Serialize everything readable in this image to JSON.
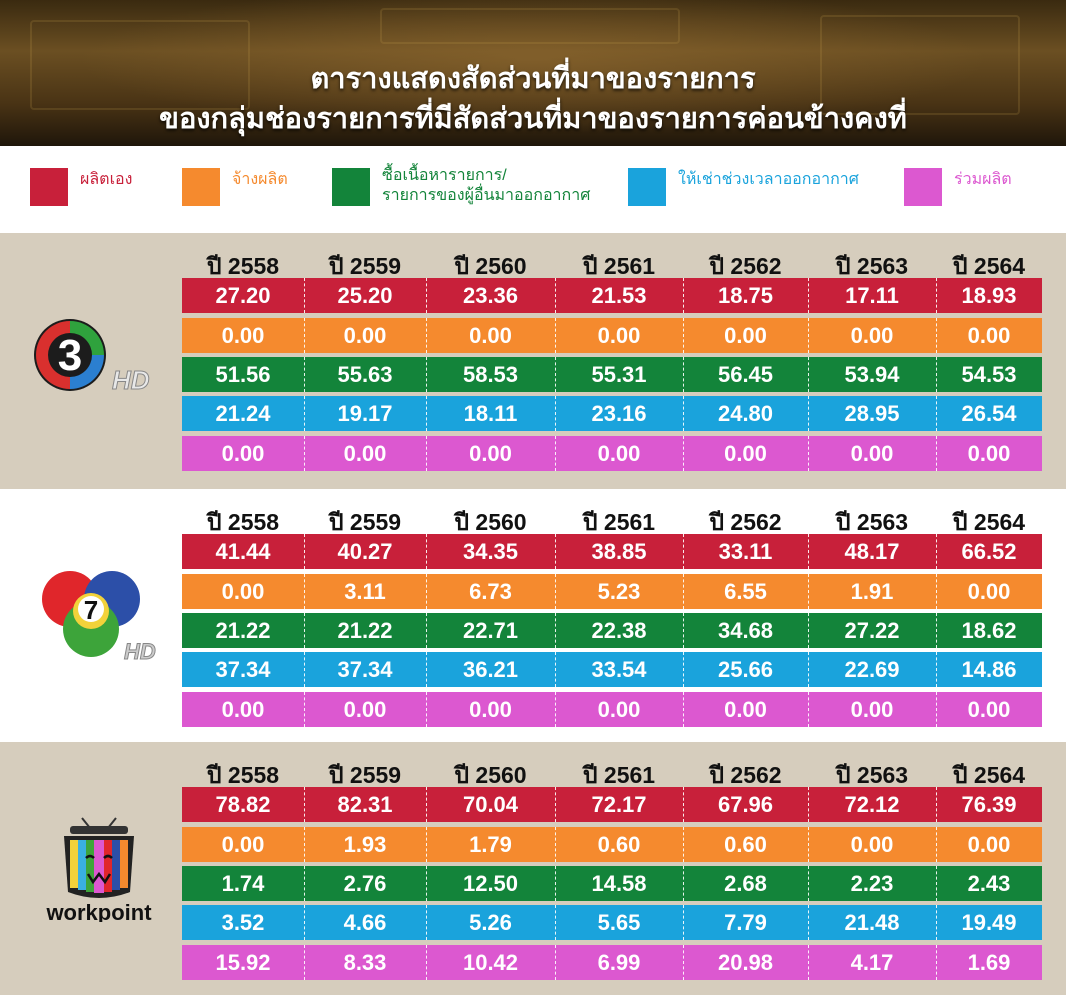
{
  "header": {
    "title_line1": "ตารางแสดงสัดส่วนที่มาของรายการ",
    "title_line2": "ของกลุ่มช่องรายการที่มีสัดส่วนที่มาของรายการค่อนข้างคงที่"
  },
  "legend": [
    {
      "lines": [
        "ผลิตเอง"
      ],
      "color": "#c8203a"
    },
    {
      "lines": [
        "จ้างผลิต"
      ],
      "color": "#f58a2e"
    },
    {
      "lines": [
        "ซื้อเนื้อหารายการ/",
        "รายการของผู้อื่นมาออกอากาศ"
      ],
      "color": "#13843a"
    },
    {
      "lines": [
        "ให้เช่าช่วงเวลาออกอากาศ"
      ],
      "color": "#1aa3dc"
    },
    {
      "lines": [
        "ร่วมผลิต"
      ],
      "color": "#dc58d0"
    }
  ],
  "years": [
    "ปี 2558",
    "ปี 2559",
    "ปี 2560",
    "ปี 2561",
    "ปี 2562",
    "ปี 2563",
    "ปี 2564"
  ],
  "channel_labels": {
    "ch3_hd": "HD",
    "ch7_number": "7",
    "ch7_hd": "HD",
    "workpoint": "workpoint"
  },
  "chart_data": [
    {
      "type": "table",
      "channel": "3 HD",
      "columns": [
        "ปี 2558",
        "ปี 2559",
        "ปี 2560",
        "ปี 2561",
        "ปี 2562",
        "ปี 2563",
        "ปี 2564"
      ],
      "series": [
        {
          "name": "ผลิตเอง",
          "values": [
            "27.20",
            "25.20",
            "23.36",
            "21.53",
            "18.75",
            "17.11",
            "18.93"
          ]
        },
        {
          "name": "จ้างผลิต",
          "values": [
            "0.00",
            "0.00",
            "0.00",
            "0.00",
            "0.00",
            "0.00",
            "0.00"
          ]
        },
        {
          "name": "ซื้อเนื้อหารายการ/รายการของผู้อื่นมาออกอากาศ",
          "values": [
            "51.56",
            "55.63",
            "58.53",
            "55.31",
            "56.45",
            "53.94",
            "54.53"
          ]
        },
        {
          "name": "ให้เช่าช่วงเวลาออกอากาศ",
          "values": [
            "21.24",
            "19.17",
            "18.11",
            "23.16",
            "24.80",
            "28.95",
            "26.54"
          ]
        },
        {
          "name": "ร่วมผลิต",
          "values": [
            "0.00",
            "0.00",
            "0.00",
            "0.00",
            "0.00",
            "0.00",
            "0.00"
          ]
        }
      ]
    },
    {
      "type": "table",
      "channel": "7 HD",
      "columns": [
        "ปี 2558",
        "ปี 2559",
        "ปี 2560",
        "ปี 2561",
        "ปี 2562",
        "ปี 2563",
        "ปี 2564"
      ],
      "series": [
        {
          "name": "ผลิตเอง",
          "values": [
            "41.44",
            "40.27",
            "34.35",
            "38.85",
            "33.11",
            "48.17",
            "66.52"
          ]
        },
        {
          "name": "จ้างผลิต",
          "values": [
            "0.00",
            "3.11",
            "6.73",
            "5.23",
            "6.55",
            "1.91",
            "0.00"
          ]
        },
        {
          "name": "ซื้อเนื้อหารายการ/รายการของผู้อื่นมาออกอากาศ",
          "values": [
            "21.22",
            "21.22",
            "22.71",
            "22.38",
            "34.68",
            "27.22",
            "18.62"
          ]
        },
        {
          "name": "ให้เช่าช่วงเวลาออกอากาศ",
          "values": [
            "37.34",
            "37.34",
            "36.21",
            "33.54",
            "25.66",
            "22.69",
            "14.86"
          ]
        },
        {
          "name": "ร่วมผลิต",
          "values": [
            "0.00",
            "0.00",
            "0.00",
            "0.00",
            "0.00",
            "0.00",
            "0.00"
          ]
        }
      ]
    },
    {
      "type": "table",
      "channel": "workpoint",
      "columns": [
        "ปี 2558",
        "ปี 2559",
        "ปี 2560",
        "ปี 2561",
        "ปี 2562",
        "ปี 2563",
        "ปี 2564"
      ],
      "series": [
        {
          "name": "ผลิตเอง",
          "values": [
            "78.82",
            "82.31",
            "70.04",
            "72.17",
            "67.96",
            "72.12",
            "76.39"
          ]
        },
        {
          "name": "จ้างผลิต",
          "values": [
            "0.00",
            "1.93",
            "1.79",
            "0.60",
            "0.60",
            "0.00",
            "0.00"
          ]
        },
        {
          "name": "ซื้อเนื้อหารายการ/รายการของผู้อื่นมาออกอากาศ",
          "values": [
            "1.74",
            "2.76",
            "12.50",
            "14.58",
            "2.68",
            "2.23",
            "2.43"
          ]
        },
        {
          "name": "ให้เช่าช่วงเวลาออกอากาศ",
          "values": [
            "3.52",
            "4.66",
            "5.26",
            "5.65",
            "7.79",
            "21.48",
            "19.49"
          ]
        },
        {
          "name": "ร่วมผลิต",
          "values": [
            "15.92",
            "8.33",
            "10.42",
            "6.99",
            "20.98",
            "4.17",
            "1.69"
          ]
        }
      ]
    }
  ]
}
